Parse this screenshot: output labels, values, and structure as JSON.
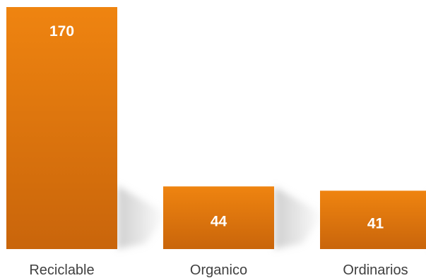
{
  "chart_data": {
    "type": "bar",
    "categories": [
      "Reciclable",
      "Organico",
      "Ordinarios"
    ],
    "values": [
      170,
      44,
      41
    ],
    "ylim": [
      0,
      170
    ],
    "grid": false,
    "value_labels": [
      "170",
      "44",
      "41"
    ],
    "colors": {
      "bar_top": "#ef8410",
      "bar_bottom": "#c9650b",
      "value_text": "#ffffff",
      "category_text": "#404040",
      "shadow": "#bfbfbf"
    }
  }
}
